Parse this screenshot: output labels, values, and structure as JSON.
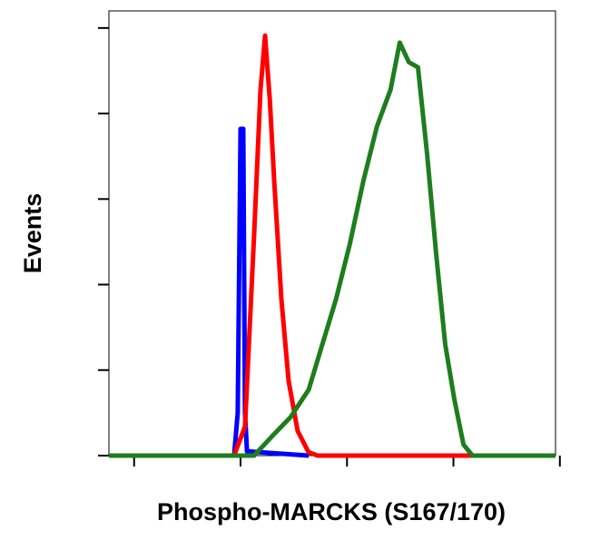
{
  "chart_data": {
    "type": "line",
    "x_label": "Phospho-MARCKS (S167/170)",
    "y_label": "Events",
    "x_log": true,
    "xlim": [
      5.8,
      91000
    ],
    "xticks": [
      10,
      100,
      1000,
      10000,
      100000
    ],
    "ylim": [
      0,
      5.2
    ],
    "yticks": [
      0,
      1,
      2,
      3,
      4,
      5
    ],
    "line_width": 5,
    "series": [
      {
        "color": "#0000ff",
        "x": [
          5.8,
          87,
          94,
          100,
          106,
          110,
          115,
          437
        ],
        "values": [
          0,
          0,
          0.5,
          3.82,
          3.82,
          0.5,
          0.05,
          0
        ]
      },
      {
        "color": "#ff0000",
        "x": [
          5.8,
          87,
          110,
          134,
          154,
          170,
          188,
          207,
          242,
          283,
          344,
          435,
          530,
          91000
        ],
        "values": [
          0,
          0,
          0.34,
          2.57,
          4.28,
          4.91,
          4.17,
          3.21,
          1.83,
          0.87,
          0.29,
          0.04,
          0,
          0
        ]
      },
      {
        "color": "#1e7d1e",
        "x": [
          5.8,
          134,
          199,
          295,
          437,
          587,
          789,
          1062,
          1426,
          1914,
          2570,
          3131,
          3811,
          4645,
          5649,
          6886,
          8375,
          10200,
          12420,
          15100,
          91000
        ],
        "values": [
          0,
          0,
          0.23,
          0.45,
          0.77,
          1.3,
          1.83,
          2.47,
          3.21,
          3.85,
          4.28,
          4.83,
          4.6,
          4.54,
          3.53,
          2.36,
          1.3,
          0.66,
          0.13,
          0,
          0
        ]
      }
    ]
  }
}
